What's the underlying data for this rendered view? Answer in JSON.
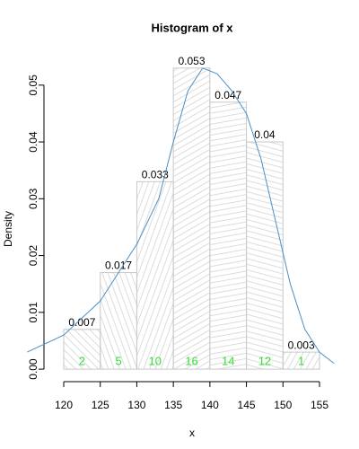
{
  "chart_data": {
    "type": "histogram",
    "title": "Histogram of x",
    "xlabel": "x",
    "ylabel": "Density",
    "bins": [
      120,
      125,
      130,
      135,
      140,
      145,
      150,
      155
    ],
    "values": [
      0.007,
      0.017,
      0.033,
      0.053,
      0.047,
      0.04,
      0.003
    ],
    "counts": [
      2,
      5,
      10,
      16,
      14,
      12,
      1
    ],
    "bar_color": "#c8c8c8",
    "count_color": "#33dd33",
    "density": {
      "color": "#4a90c8",
      "x": [
        115,
        120,
        125,
        130,
        133,
        135,
        137,
        139,
        141,
        143,
        145,
        147,
        149,
        151,
        153,
        155,
        157
      ],
      "y": [
        0.003,
        0.006,
        0.012,
        0.022,
        0.03,
        0.04,
        0.049,
        0.053,
        0.052,
        0.049,
        0.045,
        0.037,
        0.026,
        0.015,
        0.007,
        0.003,
        0.001
      ]
    },
    "xlim": [
      115,
      160
    ],
    "ylim": [
      -0.0022,
      0.0555
    ],
    "xticks": [
      120,
      125,
      130,
      135,
      140,
      145,
      150,
      155
    ],
    "yticks": [
      {
        "value": 0,
        "label": "0.00"
      },
      {
        "value": 0.01,
        "label": "0.01"
      },
      {
        "value": 0.02,
        "label": "0.02"
      },
      {
        "value": 0.03,
        "label": "0.03"
      },
      {
        "value": 0.04,
        "label": "0.04"
      },
      {
        "value": 0.05,
        "label": "0.05"
      }
    ]
  }
}
